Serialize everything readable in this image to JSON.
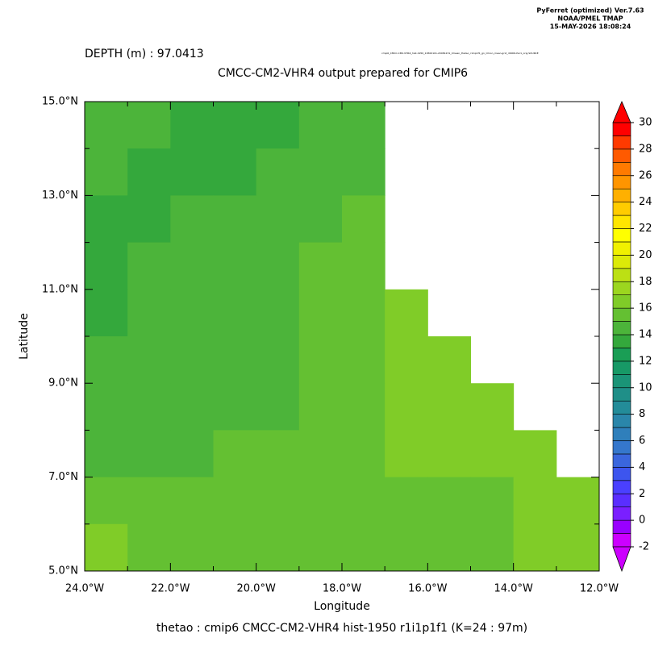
{
  "chart_data": {
    "type": "heatmap",
    "header": [
      "PyFerret (optimized) Ver.7.63",
      "NOAA/PMEL TMAP",
      "15-MAY-2026 18:08:24"
    ],
    "subtitle": "DEPTH (m) : 97.0413",
    "dataset": "cmip6_CMCC-CM2-VHR4_hist-1950_19500101-20081231_0mean_thetao_r1i1p1f1_gn_Omon_mean.grid_d0009-fwr1_orig.SOURCE",
    "title": "CMCC-CM2-VHR4 output prepared for CMIP6",
    "xlabel": "Longitude",
    "ylabel": "Latitude",
    "footer": "thetao : cmip6 CMCC-CM2-VHR4 hist-1950 r1i1p1f1   (K=24 : 97m)",
    "x": [
      -23.5,
      -22.5,
      -21.5,
      -20.5,
      -19.5,
      -18.5,
      -17.5,
      -16.5,
      -15.5,
      -14.5,
      -13.5,
      -12.5
    ],
    "y": [
      14.5,
      13.5,
      12.5,
      11.5,
      10.5,
      9.5,
      8.5,
      7.5,
      6.5,
      5.5
    ],
    "values": [
      [
        14,
        14,
        13,
        13,
        13,
        14,
        14,
        null,
        null,
        null,
        null,
        null
      ],
      [
        14,
        13,
        13,
        13,
        14,
        14,
        14,
        null,
        null,
        null,
        null,
        null
      ],
      [
        13,
        13,
        14,
        14,
        14,
        14,
        15,
        null,
        null,
        null,
        null,
        null
      ],
      [
        13,
        14,
        14,
        14,
        14,
        15,
        15,
        null,
        null,
        null,
        null,
        null
      ],
      [
        13,
        14,
        14,
        14,
        14,
        15,
        15,
        16,
        null,
        null,
        null,
        null
      ],
      [
        14,
        14,
        14,
        14,
        14,
        15,
        15,
        16,
        16,
        null,
        null,
        null
      ],
      [
        14,
        14,
        14,
        14,
        14,
        15,
        15,
        16,
        16,
        16,
        null,
        null
      ],
      [
        14,
        14,
        14,
        15,
        15,
        15,
        15,
        16,
        16,
        16,
        16,
        null
      ],
      [
        15,
        15,
        15,
        15,
        15,
        15,
        15,
        15,
        15,
        15,
        16,
        16
      ],
      [
        16,
        15,
        15,
        15,
        15,
        15,
        15,
        15,
        15,
        15,
        16,
        16
      ]
    ],
    "xlim": [
      -24,
      -12
    ],
    "xticks": [
      {
        "value": -24,
        "label": "24.0°W"
      },
      {
        "value": -22,
        "label": "22.0°W"
      },
      {
        "value": -20,
        "label": "20.0°W"
      },
      {
        "value": -18,
        "label": "18.0°W"
      },
      {
        "value": -16,
        "label": "16.0°W"
      },
      {
        "value": -14,
        "label": "14.0°W"
      },
      {
        "value": -12,
        "label": "12.0°W"
      }
    ],
    "xminorticks": [
      -23,
      -21,
      -19,
      -17,
      -15,
      -13
    ],
    "ylim": [
      5,
      15
    ],
    "yticks": [
      {
        "value": 5,
        "label": "5.0°N"
      },
      {
        "value": 7,
        "label": "7.0°N"
      },
      {
        "value": 9,
        "label": "9.0°N"
      },
      {
        "value": 11,
        "label": "11.0°N"
      },
      {
        "value": 13,
        "label": "13.0°N"
      },
      {
        "value": 15,
        "label": "15.0°N"
      }
    ],
    "yminorticks": [
      6,
      8,
      10,
      12,
      14
    ],
    "colorbar": {
      "lim": [
        -2,
        30
      ],
      "ticks": [
        -2,
        0,
        2,
        4,
        6,
        8,
        10,
        12,
        14,
        16,
        18,
        20,
        22,
        24,
        26,
        28,
        30
      ],
      "colors": [
        "#cc00ff",
        "#9900ff",
        "#7a1fff",
        "#5a2eff",
        "#4a40ff",
        "#3d55ee",
        "#3a66dd",
        "#3577cc",
        "#2f7fbb",
        "#2a86aa",
        "#238c99",
        "#1f8f88",
        "#1a9477",
        "#179966",
        "#1a9e55",
        "#34a83c",
        "#4cb43a",
        "#64c032",
        "#80cc28",
        "#9cd61f",
        "#bce014",
        "#dcea08",
        "#f0f000",
        "#ffff00",
        "#ffe600",
        "#ffcc00",
        "#ffb000",
        "#ff9500",
        "#ff7a00",
        "#ff5a00",
        "#ff3a00",
        "#ff0000"
      ]
    }
  }
}
